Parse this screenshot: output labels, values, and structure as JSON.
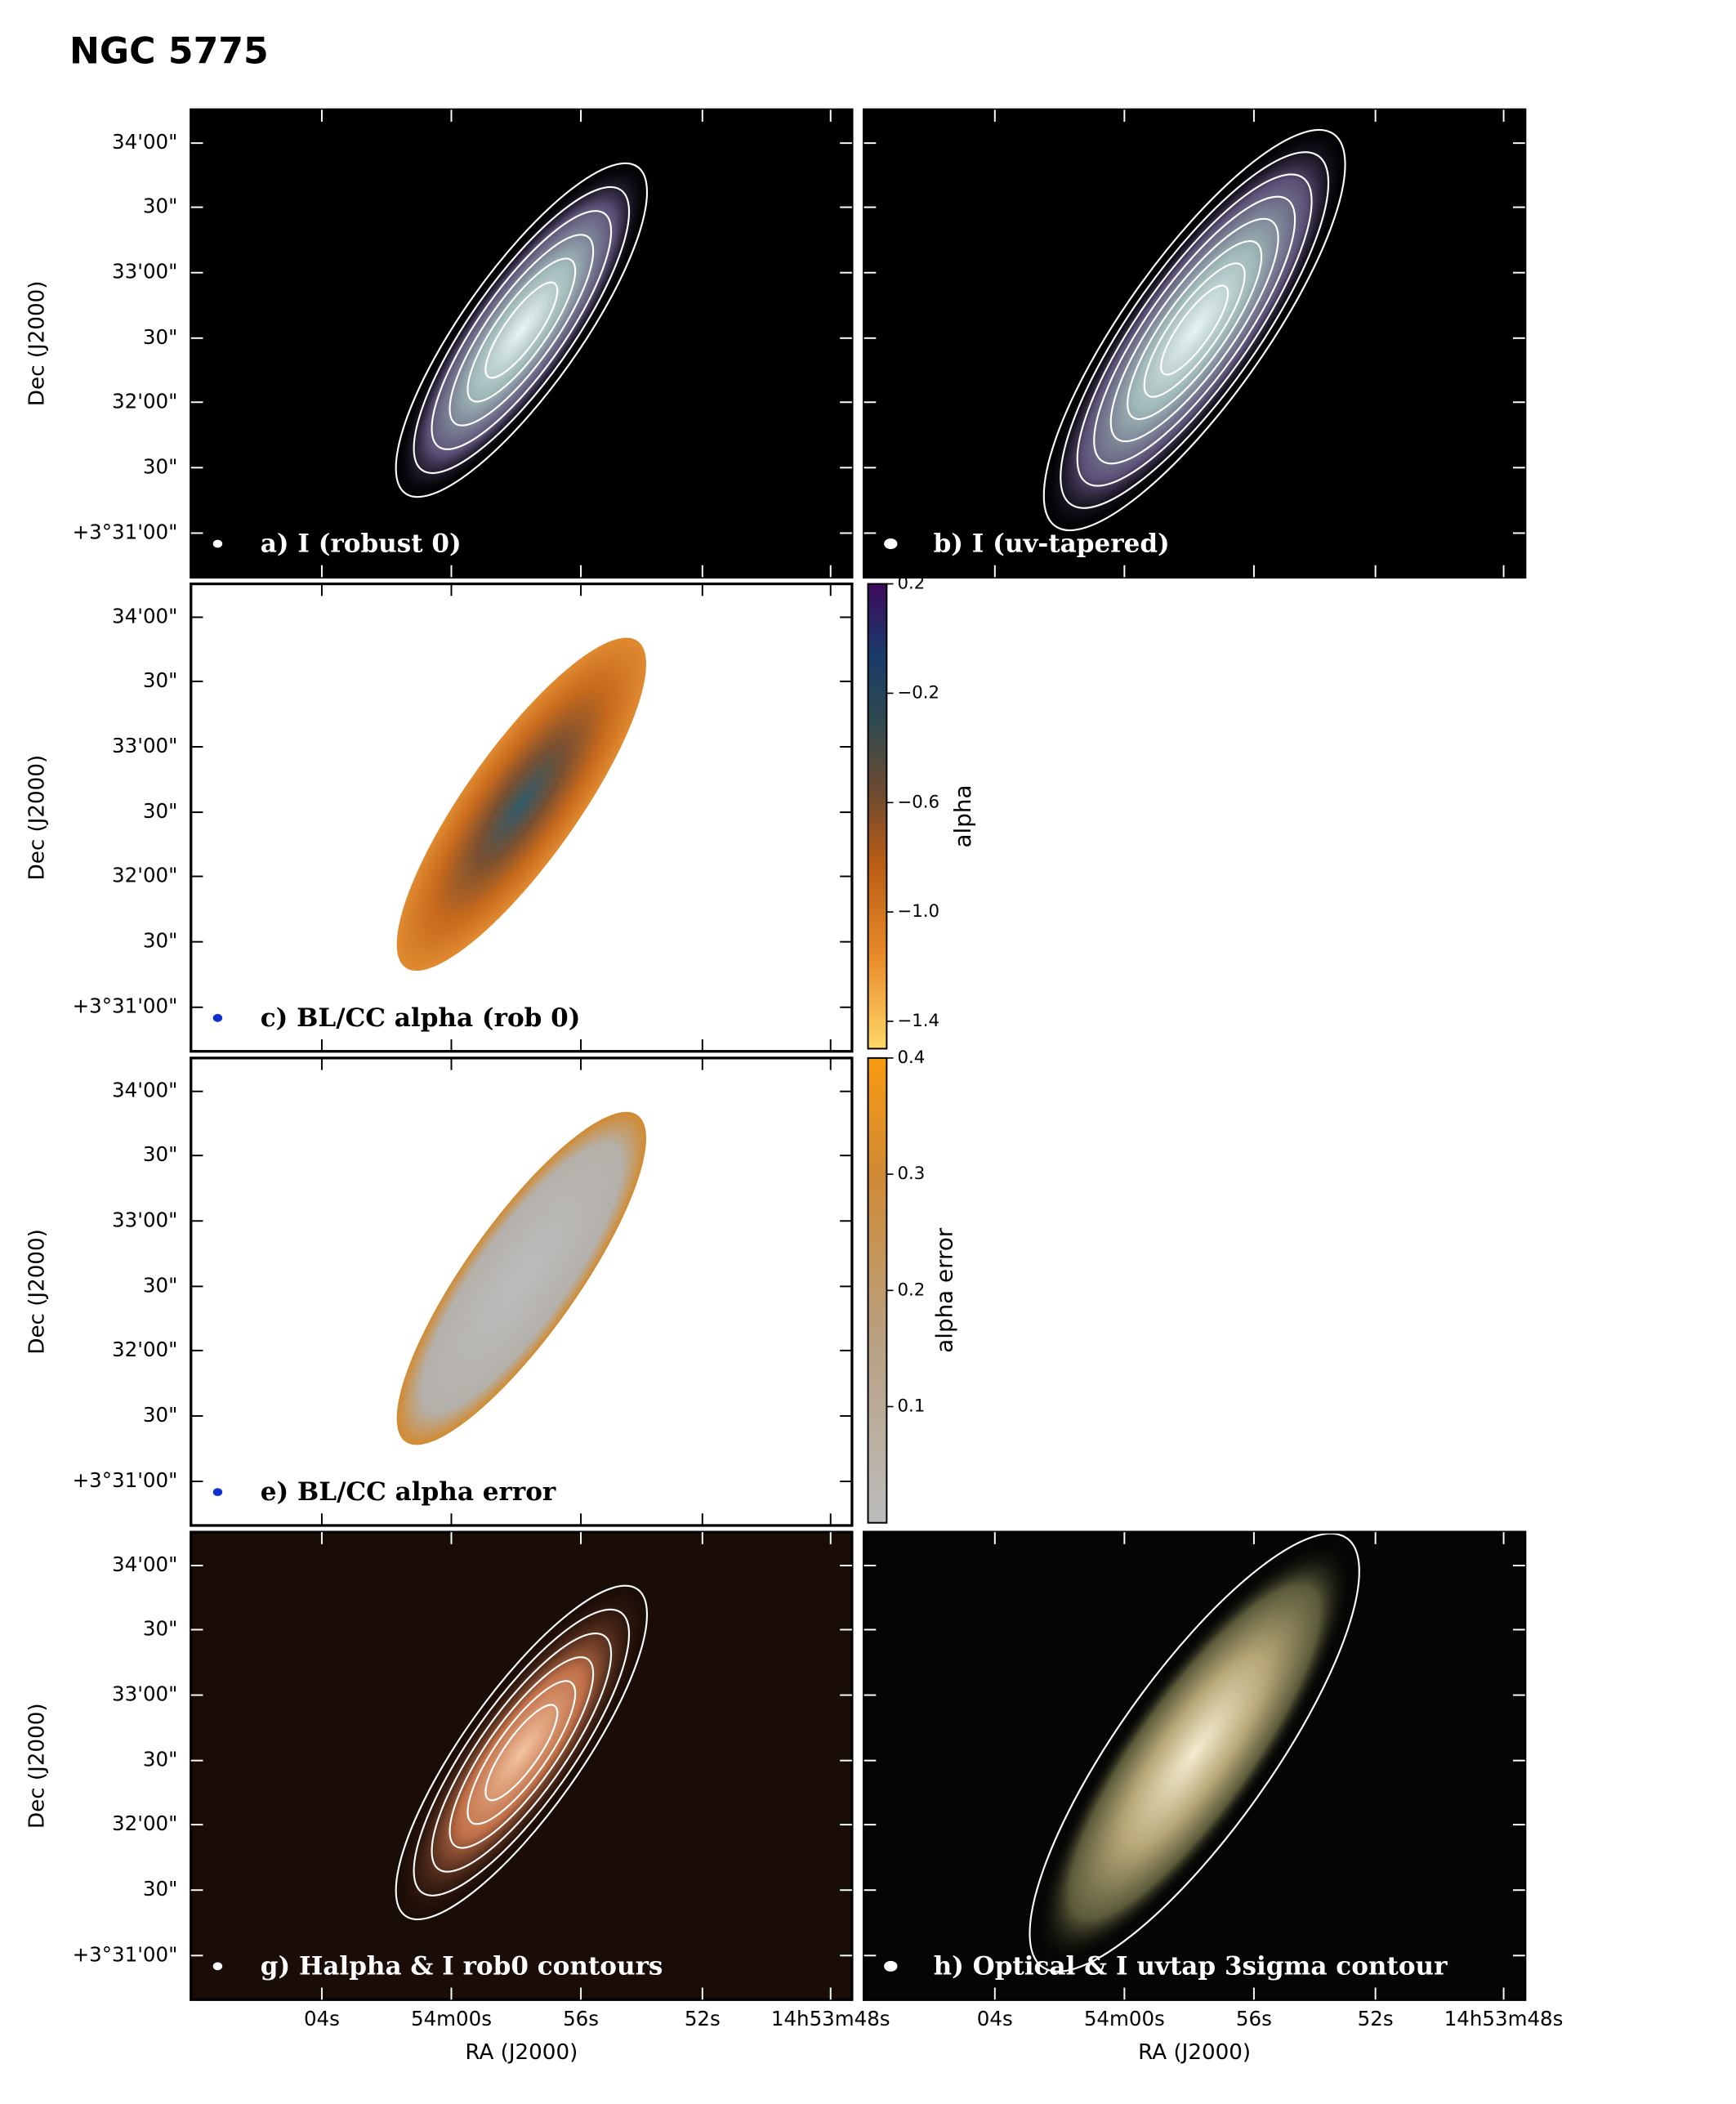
{
  "title": "NGC 5775",
  "panels": [
    {
      "label": "a) I (robust 0)"
    },
    {
      "label": "b) I (uv-tapered)"
    },
    {
      "label": "c) BL/CC alpha (rob 0)"
    },
    {
      "label": "e)  BL/CC alpha error"
    },
    {
      "label": "g) Halpha & I rob0 contours"
    },
    {
      "label": "h) Optical & I uvtap 3sigma contour"
    }
  ],
  "axes": {
    "y_label": "Dec (J2000)",
    "x_label": "RA (J2000)",
    "y_ticks": [
      "34'00\"",
      "30\"",
      "33'00\"",
      "30\"",
      "32'00\"",
      "30\"",
      "+3°31'00\""
    ],
    "x_ticks": [
      "04s",
      "54m00s",
      "56s",
      "52s",
      "14h53m48s"
    ]
  },
  "colorbars": [
    {
      "label": "alpha",
      "lim": [
        -1.5,
        0.2
      ],
      "ticks": [
        0.2,
        {
          "value": -0.2,
          "label": "−0.2"
        },
        {
          "value": -0.6,
          "label": "−0.6"
        },
        {
          "value": -1.0,
          "label": "−1.0"
        },
        {
          "value": -1.4,
          "label": "−1.4"
        }
      ]
    },
    {
      "label": "alpha error",
      "lim": [
        0,
        0.4
      ],
      "ticks": [
        0.4,
        0.3,
        0.2,
        0.1
      ]
    }
  ]
}
